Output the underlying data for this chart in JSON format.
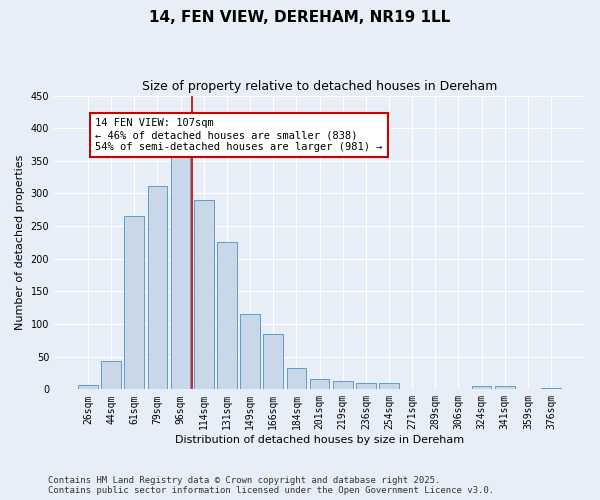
{
  "title_line1": "14, FEN VIEW, DEREHAM, NR19 1LL",
  "title_line2": "Size of property relative to detached houses in Dereham",
  "xlabel": "Distribution of detached houses by size in Dereham",
  "ylabel": "Number of detached properties",
  "categories": [
    "26sqm",
    "44sqm",
    "61sqm",
    "79sqm",
    "96sqm",
    "114sqm",
    "131sqm",
    "149sqm",
    "166sqm",
    "184sqm",
    "201sqm",
    "219sqm",
    "236sqm",
    "254sqm",
    "271sqm",
    "289sqm",
    "306sqm",
    "324sqm",
    "341sqm",
    "359sqm",
    "376sqm"
  ],
  "values": [
    6,
    43,
    265,
    312,
    375,
    290,
    225,
    115,
    85,
    33,
    16,
    13,
    9,
    10,
    0,
    0,
    0,
    5,
    5,
    0,
    2
  ],
  "bar_color": "#c8d8e8",
  "bar_edge_color": "#5f9cc5",
  "vline_x_index": 4.5,
  "vline_color": "#cc0000",
  "annotation_line1": "14 FEN VIEW: 107sqm",
  "annotation_line2": "← 46% of detached houses are smaller (838)",
  "annotation_line3": "54% of semi-detached houses are larger (981) →",
  "annotation_box_color": "#ffffff",
  "annotation_box_edge": "#cc0000",
  "ylim": [
    0,
    450
  ],
  "yticks": [
    0,
    50,
    100,
    150,
    200,
    250,
    300,
    350,
    400,
    450
  ],
  "background_color": "#e8eef8",
  "grid_color": "#ffffff",
  "footer_line1": "Contains HM Land Registry data © Crown copyright and database right 2025.",
  "footer_line2": "Contains public sector information licensed under the Open Government Licence v3.0.",
  "title_fontsize": 11,
  "subtitle_fontsize": 9,
  "axis_label_fontsize": 8,
  "tick_fontsize": 7,
  "annotation_fontsize": 7.5,
  "footer_fontsize": 6.5
}
